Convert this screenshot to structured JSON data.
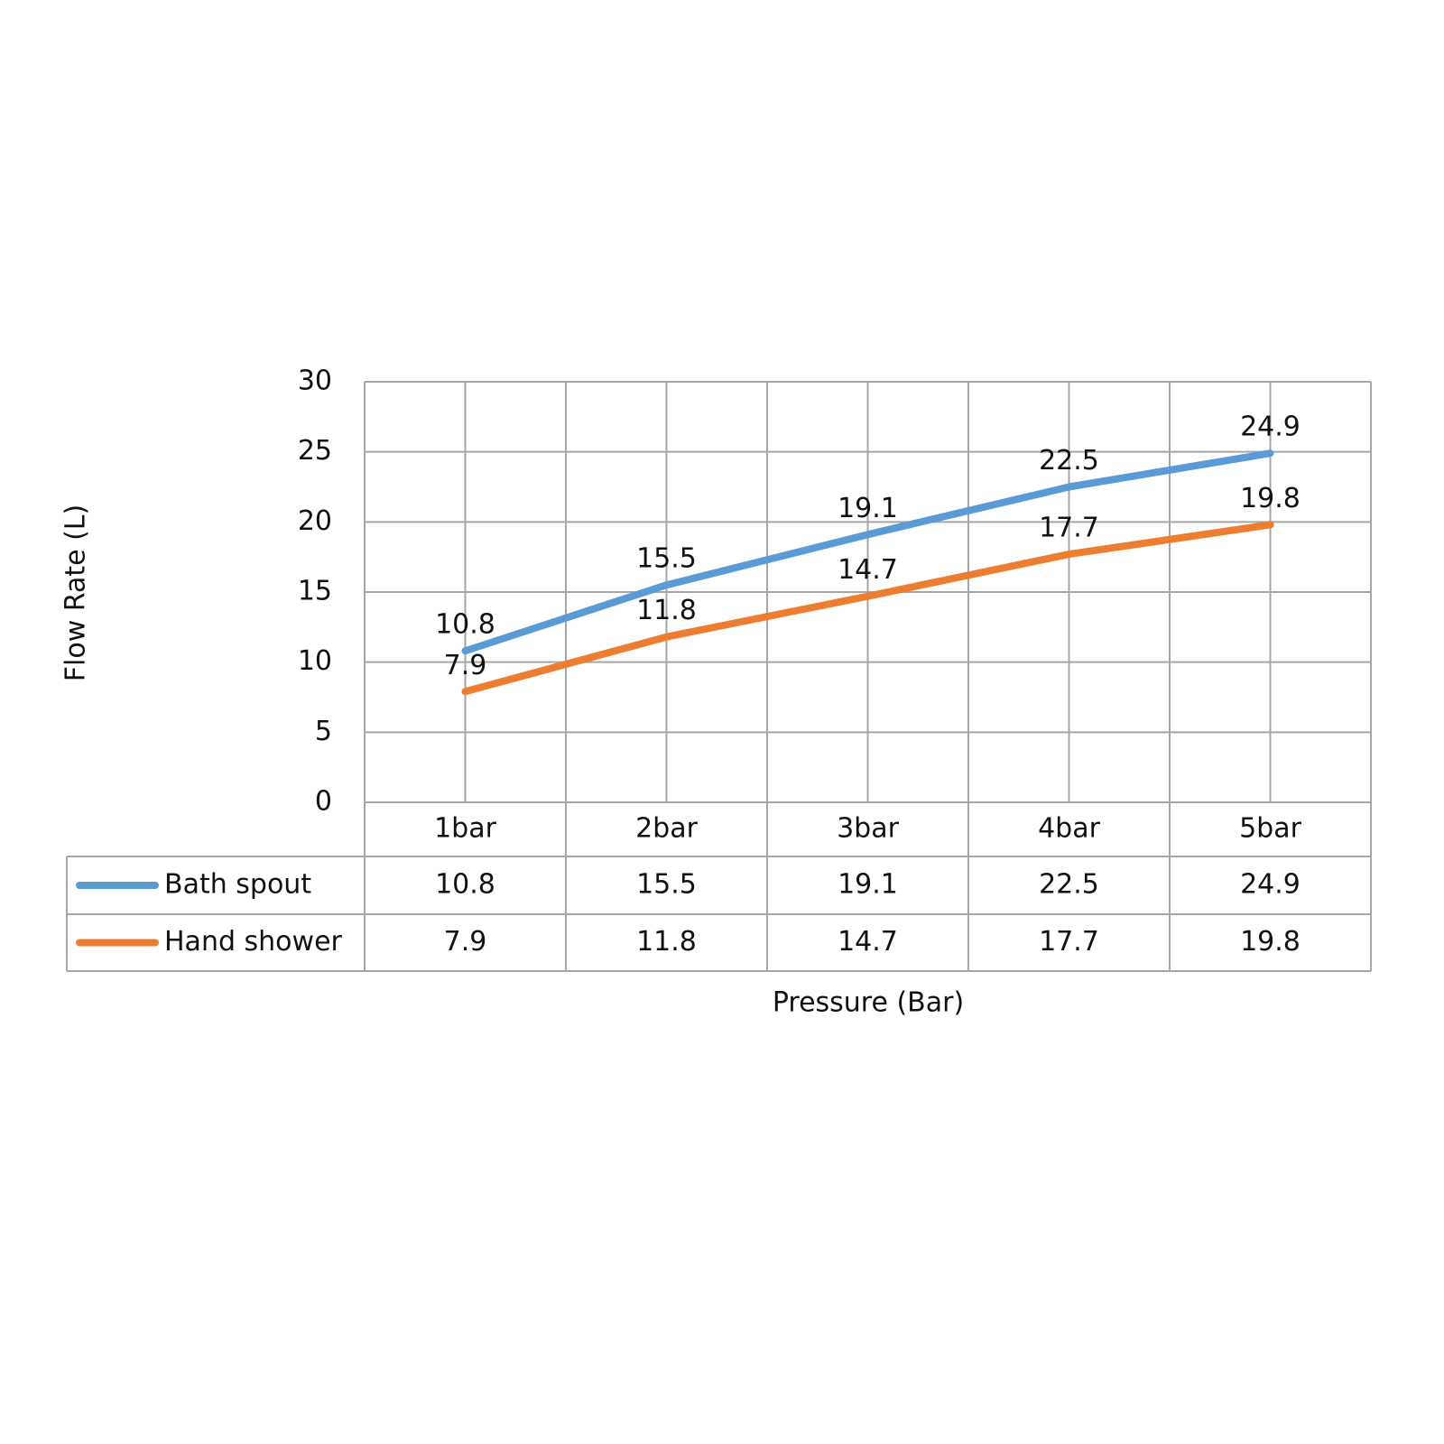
{
  "chart_data": {
    "type": "line",
    "categories": [
      "1bar",
      "2bar",
      "3bar",
      "4bar",
      "5bar"
    ],
    "series": [
      {
        "name": "Bath spout",
        "color": "#5b9bd5",
        "values": [
          10.8,
          15.5,
          19.1,
          22.5,
          24.9
        ]
      },
      {
        "name": "Hand shower",
        "color": "#ed7d31",
        "values": [
          7.9,
          11.8,
          14.7,
          17.7,
          19.8
        ]
      }
    ],
    "ylim": [
      0,
      30
    ],
    "yticks": [
      0,
      5,
      10,
      15,
      20,
      25,
      30
    ],
    "grid": true,
    "y_label": "Flow Rate (L)",
    "x_label": "Pressure (Bar)",
    "data_table": true
  }
}
